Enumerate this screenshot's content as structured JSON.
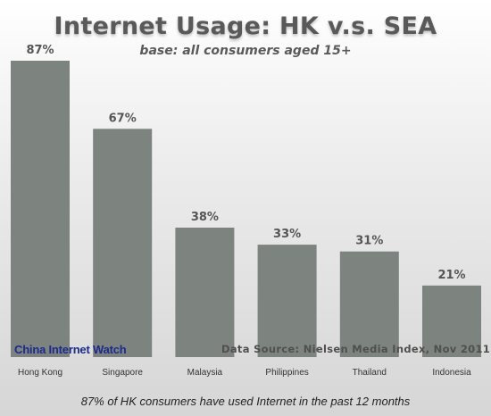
{
  "chart_data": {
    "type": "bar",
    "title": "Internet Usage: HK v.s. SEA",
    "subtitle": "base: all consumers aged 15+",
    "categories": [
      "Hong Kong",
      "Singapore",
      "Malaysia",
      "Philippines",
      "Thailand",
      "Indonesia"
    ],
    "values": [
      87,
      67,
      38,
      33,
      31,
      21
    ],
    "data_labels": [
      "87%",
      "67%",
      "38%",
      "33%",
      "31%",
      "21%"
    ],
    "unit": "%",
    "ylim": [
      0,
      100
    ],
    "grid": false,
    "bar_color": "#7d837f",
    "xlabel": "",
    "ylabel": ""
  },
  "watermark": "China Internet Watch",
  "source": "Data Source: Nielsen Media Index, Nov 2011",
  "caption": "87% of HK consumers have used Internet in the past 12 months",
  "colors": {
    "bar": "#7d837f",
    "watermark": "#1b2a8c",
    "title": "#595959"
  }
}
